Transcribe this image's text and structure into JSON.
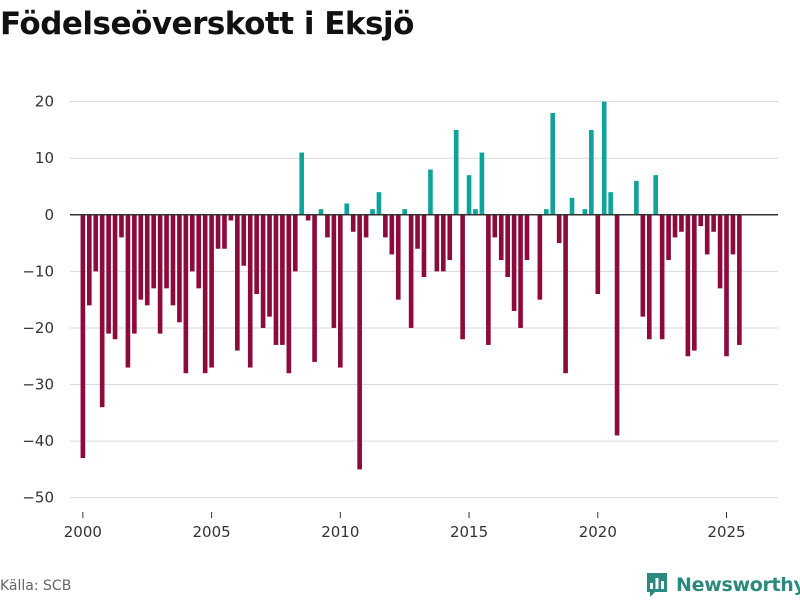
{
  "brand": {
    "name": "Newsworthy",
    "logo_icon": "newsworthy-bar-chart-icon",
    "color": "#2b8a7e"
  },
  "source": "Källa: SCB",
  "colors": {
    "positive": "#0fa39a",
    "negative": "#8c0a3c",
    "grid": "#d9d9d9",
    "zero_line": "#333333"
  },
  "chart_data": {
    "type": "bar",
    "title": "Födelseöverskott i Eksjö",
    "xlabel": "",
    "ylabel": "",
    "ylim": [
      -52,
      24
    ],
    "yticks": [
      -50,
      -40,
      -30,
      -20,
      -10,
      0,
      10,
      20
    ],
    "ytick_labels": [
      "−50",
      "−40",
      "−30",
      "−20",
      "−10",
      "0",
      "10",
      "20"
    ],
    "xlim": [
      1999.5,
      2027
    ],
    "xticks": [
      2000,
      2005,
      2010,
      2015,
      2020,
      2025
    ],
    "xtick_labels": [
      "2000",
      "2005",
      "2010",
      "2015",
      "2020",
      "2025"
    ],
    "grid": true,
    "frequency": "quarterly",
    "start": 2000.0,
    "step": 0.25,
    "values": [
      -43,
      -16,
      -10,
      -34,
      -21,
      -22,
      -4,
      -27,
      -21,
      -15,
      -16,
      -13,
      -21,
      -13,
      -16,
      -19,
      -28,
      -10,
      -13,
      -28,
      -27,
      -6,
      -6,
      -1,
      -24,
      -9,
      -27,
      -14,
      -20,
      -18,
      -23,
      -23,
      -28,
      -10,
      11,
      -1,
      -26,
      1,
      -4,
      -20,
      -27,
      2,
      -3,
      -45,
      -4,
      1,
      4,
      -4,
      -7,
      -15,
      1,
      -20,
      -6,
      -11,
      8,
      -10,
      -10,
      -8,
      15,
      -22,
      7,
      1,
      11,
      -23,
      -4,
      -8,
      -11,
      -17,
      -20,
      -8,
      0,
      -15,
      1,
      18,
      -5,
      -28,
      3,
      0,
      1,
      15,
      -14,
      20,
      4,
      -39,
      0,
      0,
      6,
      -18,
      -22,
      7,
      -22,
      -8,
      -4,
      -3,
      -25,
      -24,
      -2,
      -7,
      -3,
      -13,
      -25,
      -7,
      -23
    ]
  }
}
